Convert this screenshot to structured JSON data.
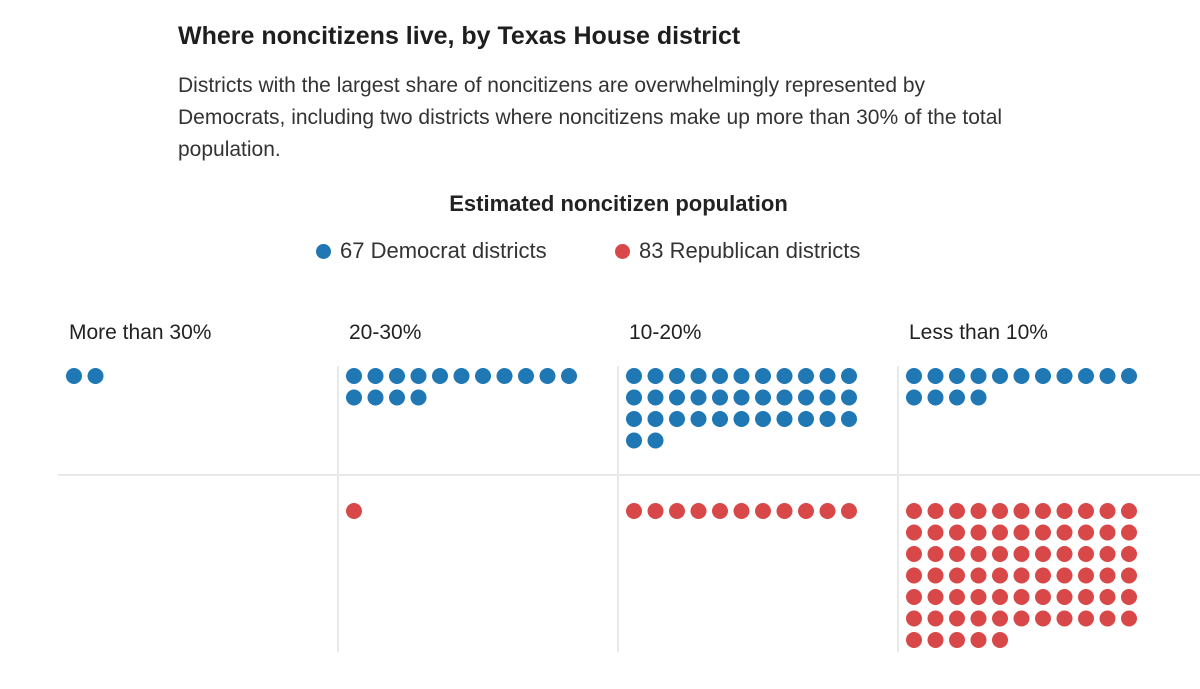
{
  "header": {
    "title": "Where noncitizens live, by Texas House district",
    "subtitle": "Districts with the largest share of noncitizens are overwhelmingly represented by Democrats, including two districts where noncitizens make up more than 30% of the total population."
  },
  "legend": {
    "heading": "Estimated noncitizen population",
    "items": [
      {
        "label": "67 Democrat districts",
        "color": "#1f77b4"
      },
      {
        "label": "83 Republican districts",
        "color": "#d94848"
      }
    ]
  },
  "chart_data": {
    "type": "dot-matrix",
    "title": "Estimated noncitizen population",
    "categories": [
      "More than 30%",
      "20-30%",
      "10-20%",
      "Less than 10%"
    ],
    "series": [
      {
        "name": "Democrat districts",
        "color": "#1f77b4",
        "values": [
          2,
          15,
          35,
          15
        ]
      },
      {
        "name": "Republican districts",
        "color": "#d94848",
        "values": [
          0,
          1,
          11,
          71
        ]
      }
    ],
    "legend_position": "top-center",
    "grid": true
  }
}
